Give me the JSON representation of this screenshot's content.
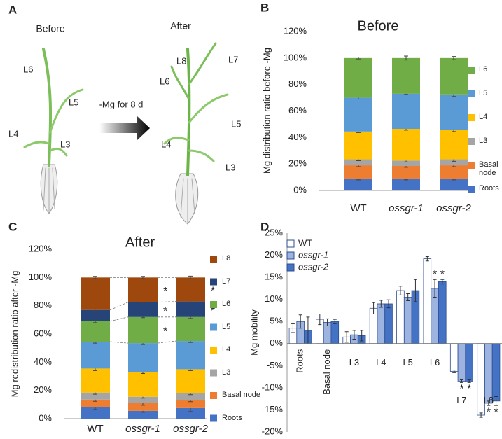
{
  "illustration": {
    "panel": "A",
    "before_label": "Before",
    "after_label": "After",
    "treatment": "-Mg for 8 d",
    "before_leaves": [
      "L6",
      "L5",
      "L4",
      "L3"
    ],
    "after_leaves": [
      "L8",
      "L7",
      "L6",
      "L5",
      "L4",
      "L3"
    ]
  },
  "chart_data": [
    {
      "type": "stacked_bar",
      "panel": "B",
      "title": "Before",
      "ylabel": "Mg distribution ratio before -Mg",
      "categories": [
        "WT",
        "ossgr-1",
        "ossgr-2"
      ],
      "category_italic": [
        false,
        true,
        true
      ],
      "series": [
        {
          "name": "Roots",
          "color": "#4472c4",
          "values": [
            9,
            9,
            9
          ],
          "errors": [
            1,
            1,
            1
          ]
        },
        {
          "name": "Basal node",
          "color": "#ed7d31",
          "values": [
            10,
            9.5,
            10
          ],
          "errors": [
            1,
            1,
            1
          ]
        },
        {
          "name": "L3",
          "color": "#a5a5a5",
          "values": [
            4.5,
            4,
            4.5
          ],
          "errors": [
            1,
            1,
            1.5
          ]
        },
        {
          "name": "L4",
          "color": "#ffc000",
          "values": [
            21,
            24,
            22
          ],
          "errors": [
            0.8,
            1,
            1
          ]
        },
        {
          "name": "L5",
          "color": "#5b9bd5",
          "values": [
            25.5,
            26.5,
            27
          ],
          "errors": [
            1,
            0.5,
            1.5
          ]
        },
        {
          "name": "L6",
          "color": "#70ad47",
          "values": [
            30,
            27,
            27.5
          ],
          "errors": [
            0.7,
            1.5,
            1.2
          ]
        }
      ],
      "ylim": [
        0,
        120
      ],
      "yticks": [
        {
          "value": 0,
          "label": "0%"
        },
        {
          "value": 20,
          "label": "20%"
        },
        {
          "value": 40,
          "label": "40%"
        },
        {
          "value": 60,
          "label": "60%"
        },
        {
          "value": 80,
          "label": "80%"
        },
        {
          "value": 100,
          "label": "100%"
        },
        {
          "value": 120,
          "label": "120%"
        }
      ]
    },
    {
      "type": "stacked_bar",
      "panel": "C",
      "title": "After",
      "ylabel": "Mg redistribution ratio after -Mg",
      "categories": [
        "WT",
        "ossgr-1",
        "ossgr-2"
      ],
      "category_italic": [
        false,
        true,
        true
      ],
      "series": [
        {
          "name": "Roots",
          "color": "#4472c4",
          "values": [
            8,
            5.5,
            7.5
          ],
          "errors": [
            1.5,
            1,
            2.5
          ]
        },
        {
          "name": "Basal node",
          "color": "#ed7d31",
          "values": [
            5.5,
            5.5,
            5.5
          ],
          "errors": [
            1.2,
            1.5,
            1
          ]
        },
        {
          "name": "L3",
          "color": "#a5a5a5",
          "values": [
            5,
            4.5,
            5
          ],
          "errors": [
            1.2,
            1,
            1
          ]
        },
        {
          "name": "L4",
          "color": "#ffc000",
          "values": [
            17,
            17.5,
            17
          ],
          "errors": [
            1.5,
            1,
            1
          ]
        },
        {
          "name": "L5",
          "color": "#5b9bd5",
          "values": [
            19,
            20.5,
            20
          ],
          "errors": [
            1,
            1,
            1
          ]
        },
        {
          "name": "L6",
          "color": "#70ad47",
          "values": [
            14.5,
            18.5,
            17
          ],
          "errors": [
            1,
            0.5,
            1
          ],
          "significance": [
            null,
            "*",
            "*"
          ]
        },
        {
          "name": "L7",
          "color": "#264478",
          "values": [
            8,
            10.5,
            11
          ],
          "errors": [
            0.5,
            0.5,
            0.5
          ],
          "significance": [
            null,
            "*",
            "*"
          ]
        },
        {
          "name": "L8",
          "color": "#9e480e",
          "values": [
            23,
            17.5,
            17
          ],
          "errors": [
            0.8,
            0.8,
            1
          ],
          "significance": [
            null,
            "*",
            "*"
          ]
        }
      ],
      "ylim": [
        0,
        120
      ],
      "yticks": [
        {
          "value": 0,
          "label": "0%"
        },
        {
          "value": 20,
          "label": "20%"
        },
        {
          "value": 40,
          "label": "40%"
        },
        {
          "value": 60,
          "label": "60%"
        },
        {
          "value": 80,
          "label": "80%"
        },
        {
          "value": 100,
          "label": "100%"
        },
        {
          "value": 120,
          "label": "120%"
        }
      ]
    },
    {
      "type": "grouped_bar",
      "panel": "D",
      "ylabel": "Mg mobility",
      "categories": [
        "Roots",
        "Basal node",
        "L3",
        "L4",
        "L5",
        "L6",
        "L7",
        "L8"
      ],
      "legend_italic": [
        false,
        true,
        true
      ],
      "series": [
        {
          "name": "WT",
          "color": "#ffffff",
          "values": [
            3.5,
            5.5,
            1.5,
            8,
            12,
            19.2,
            -6.3,
            -16.2
          ],
          "errors": [
            1,
            1.2,
            1.2,
            1.3,
            1,
            0.5,
            0.3,
            0.5
          ]
        },
        {
          "name": "ossgr-1",
          "color": "#9db4e0",
          "values": [
            5,
            4.8,
            2,
            9,
            10.5,
            12.5,
            -8.5,
            -13.5
          ],
          "errors": [
            1.5,
            0.8,
            1,
            0.8,
            0.8,
            2,
            0.3,
            0.5
          ],
          "significance": [
            null,
            null,
            null,
            null,
            null,
            "*",
            "*",
            "*"
          ]
        },
        {
          "name": "ossgr-2",
          "color": "#4472c4",
          "values": [
            3,
            5,
            1.8,
            9,
            12,
            14,
            -8.5,
            -13
          ],
          "errors": [
            3,
            0.5,
            1.2,
            0.9,
            2.5,
            0.5,
            0.3,
            1
          ],
          "significance": [
            null,
            null,
            null,
            null,
            null,
            "*",
            "*",
            "*"
          ]
        }
      ],
      "ylim": [
        -20,
        25
      ],
      "yticks": [
        {
          "value": -20,
          "label": "-20%"
        },
        {
          "value": -15,
          "label": "-15%"
        },
        {
          "value": -10,
          "label": "-10%"
        },
        {
          "value": -5,
          "label": "-5%"
        },
        {
          "value": 0,
          "label": "0%"
        },
        {
          "value": 5,
          "label": "5%"
        },
        {
          "value": 10,
          "label": "10%"
        },
        {
          "value": 15,
          "label": "15%"
        },
        {
          "value": 20,
          "label": "20%"
        },
        {
          "value": 25,
          "label": "25%"
        }
      ]
    }
  ]
}
